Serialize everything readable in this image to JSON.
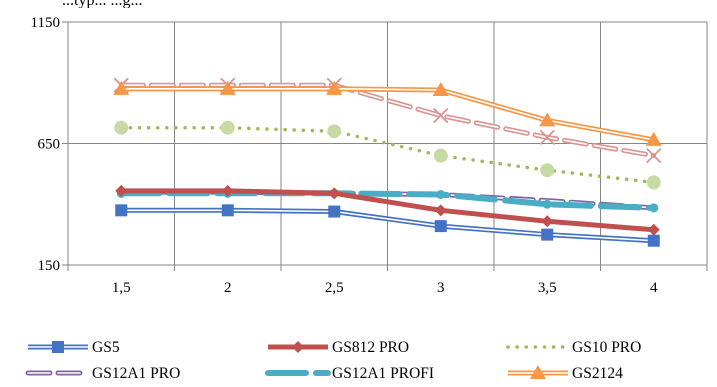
{
  "chart_data": {
    "type": "line",
    "title_fragment": "...typ... ...g...",
    "categories": [
      "1,5",
      "2",
      "2,5",
      "3",
      "3,5",
      "4"
    ],
    "ylim": [
      150,
      1150
    ],
    "yticks": [
      "150",
      "650",
      "1150"
    ],
    "grid": "both",
    "legend_position": "bottom",
    "series": [
      {
        "name": "GS5",
        "color": "#4472c4",
        "style": "double-line",
        "marker": "square",
        "values": [
          375,
          375,
          370,
          310,
          275,
          250
        ]
      },
      {
        "name": "GS812 PRO",
        "color": "#c0504d",
        "style": "thick-line",
        "marker": "diamond",
        "values": [
          455,
          455,
          445,
          375,
          330,
          295
        ]
      },
      {
        "name": "GS10 PRO",
        "color": "#9bbb59",
        "style": "dots",
        "marker": "circle",
        "values": [
          715,
          715,
          700,
          600,
          540,
          490
        ]
      },
      {
        "name": "GS12A1 PRO",
        "color": "#8064a2",
        "style": "double-dash",
        "marker": "none",
        "values": [
          450,
          450,
          445,
          440,
          415,
          385
        ]
      },
      {
        "name": "GS12A1 PROFI",
        "color": "#4bacc6",
        "style": "thick-dash",
        "marker": "circle",
        "values": [
          445,
          445,
          445,
          440,
          400,
          385
        ]
      },
      {
        "name": "GS2124",
        "color": "#f79646",
        "style": "double-line",
        "marker": "triangle",
        "values": [
          875,
          875,
          875,
          870,
          745,
          665
        ]
      },
      {
        "name": "",
        "color": "#d99694",
        "style": "double-dash",
        "marker": "x",
        "values": [
          890,
          890,
          890,
          765,
          675,
          600
        ]
      }
    ]
  }
}
